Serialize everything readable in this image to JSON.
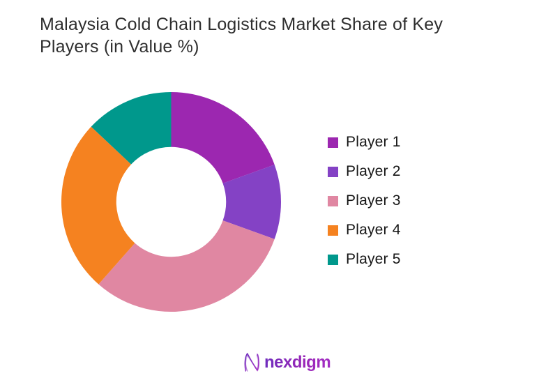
{
  "page": {
    "background": "#ffffff"
  },
  "title": {
    "line1": "Malaysia Cold Chain Logistics Market Share of Key",
    "line2": "Players (in Value %)",
    "full": "Malaysia Cold Chain Logistics Market Share of Key Players (in Value %)"
  },
  "chart_data": {
    "type": "pie",
    "subtype": "donut",
    "title": "Malaysia Cold Chain Logistics Market Share of Key Players (in Value %)",
    "categories": [
      "Player 1",
      "Player 2",
      "Player 3",
      "Player 4",
      "Player 5"
    ],
    "values": [
      19.5,
      11,
      31,
      25.5,
      13
    ],
    "unit": "%",
    "colors": [
      "#9C27B0",
      "#8442C5",
      "#E087A2",
      "#F58220",
      "#00988C"
    ],
    "start_angle_deg": 0,
    "direction": "clockwise",
    "hole_ratio": 0.5,
    "legend_position": "right",
    "data_labels_shown": false
  },
  "footer": {
    "logo_text": "nexdigm"
  }
}
